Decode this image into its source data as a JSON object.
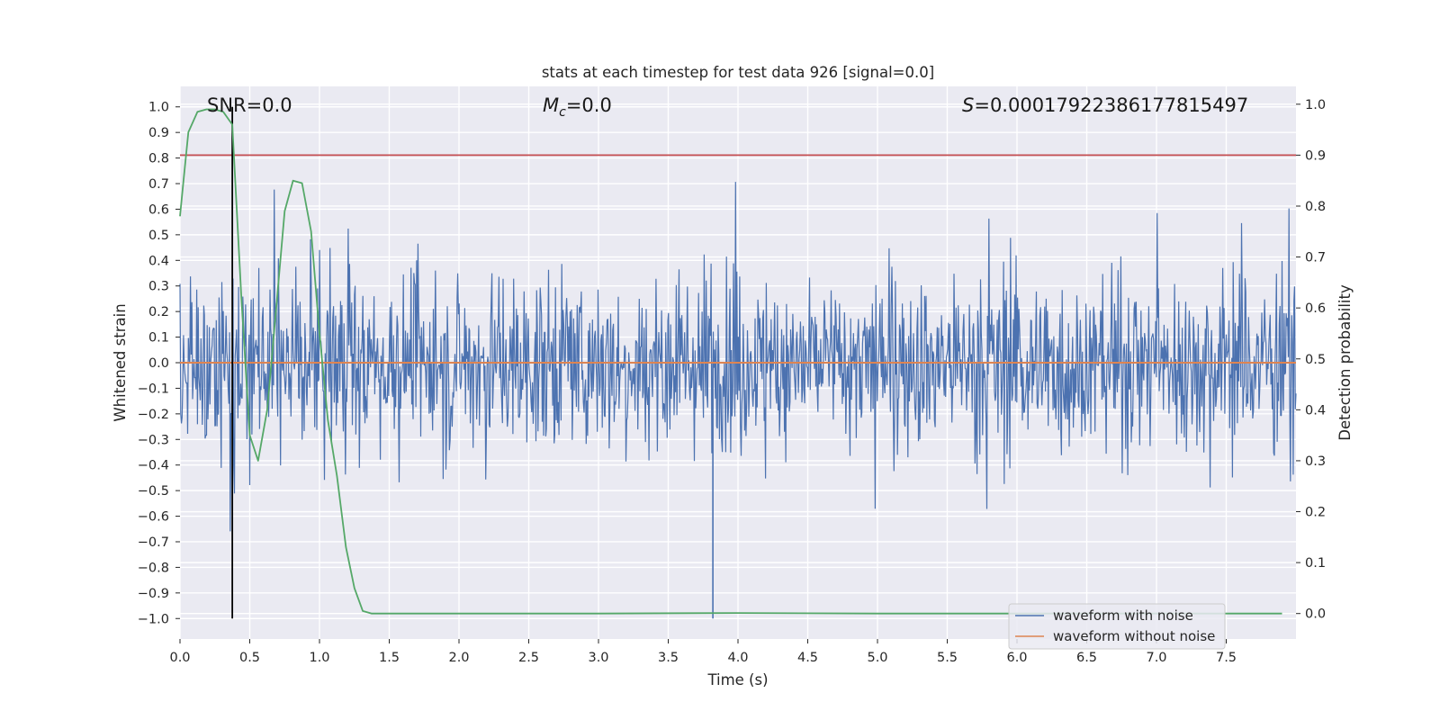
{
  "chart_data": {
    "type": "line",
    "title": "stats at each timestep for test data 926 [signal=0.0]",
    "xlabel": "Time (s)",
    "ylabel_left": "Whitened strain",
    "ylabel_right": "Detection probability",
    "xlim": [
      0.0,
      8.0
    ],
    "ylim_left": [
      -1.08,
      1.08
    ],
    "ylim_right": [
      -0.05,
      1.035
    ],
    "x_ticks": [
      "0.0",
      "0.5",
      "1.0",
      "1.5",
      "2.0",
      "2.5",
      "3.0",
      "3.5",
      "4.0",
      "4.5",
      "5.0",
      "5.5",
      "6.0",
      "6.5",
      "7.0",
      "7.5"
    ],
    "y_ticks_left": [
      "1.0",
      "0.9",
      "0.8",
      "0.7",
      "0.6",
      "0.5",
      "0.4",
      "0.3",
      "0.2",
      "0.1",
      "0.0",
      "−0.1",
      "−0.2",
      "−0.3",
      "−0.4",
      "−0.5",
      "−0.6",
      "−0.7",
      "−0.8",
      "−0.9",
      "−1.0"
    ],
    "y_ticks_right": [
      "0.0",
      "0.1",
      "0.2",
      "0.3",
      "0.4",
      "0.5",
      "0.6",
      "0.7",
      "0.8",
      "0.9",
      "1.0"
    ],
    "grid": true,
    "annotations": {
      "snr": "SNR=0.0",
      "mc_symbol": "M",
      "mc_sub": "c",
      "mc_value": "=0.0",
      "s_symbol": "S",
      "s_value": "=0.00017922386177815497"
    },
    "threshold_prob": 0.9,
    "marker_time": 0.375,
    "legend": {
      "position": "lower-right",
      "entries": [
        "waveform with noise",
        "waveform without noise"
      ]
    },
    "series": [
      {
        "name": "waveform with noise",
        "axis": "left",
        "color": "#4c72b0",
        "noise_range": [
          -1.0,
          0.97
        ]
      },
      {
        "name": "waveform without noise",
        "axis": "left",
        "color": "#dd8452",
        "x": [
          0.0,
          8.0
        ],
        "values": [
          0.0,
          0.0
        ]
      },
      {
        "name": "detection probability",
        "axis": "right",
        "color": "#55a868",
        "x": [
          0.0,
          0.025,
          0.06,
          0.125,
          0.19,
          0.25,
          0.31,
          0.375,
          0.44,
          0.5,
          0.56,
          0.625,
          0.69,
          0.75,
          0.81,
          0.875,
          0.94,
          1.0,
          1.06,
          1.125,
          1.19,
          1.25,
          1.31,
          1.375,
          1.45,
          1.6,
          2.0,
          3.0,
          4.0,
          5.0,
          6.0,
          7.0,
          7.9
        ],
        "values": [
          0.78,
          0.85,
          0.945,
          0.985,
          0.99,
          0.99,
          0.985,
          0.96,
          0.62,
          0.35,
          0.3,
          0.4,
          0.6,
          0.79,
          0.85,
          0.845,
          0.75,
          0.55,
          0.38,
          0.27,
          0.13,
          0.05,
          0.005,
          0.0,
          0.0,
          0.0,
          0.0,
          0.0,
          0.001,
          0.0,
          0.0,
          0.0,
          0.0
        ]
      }
    ]
  }
}
